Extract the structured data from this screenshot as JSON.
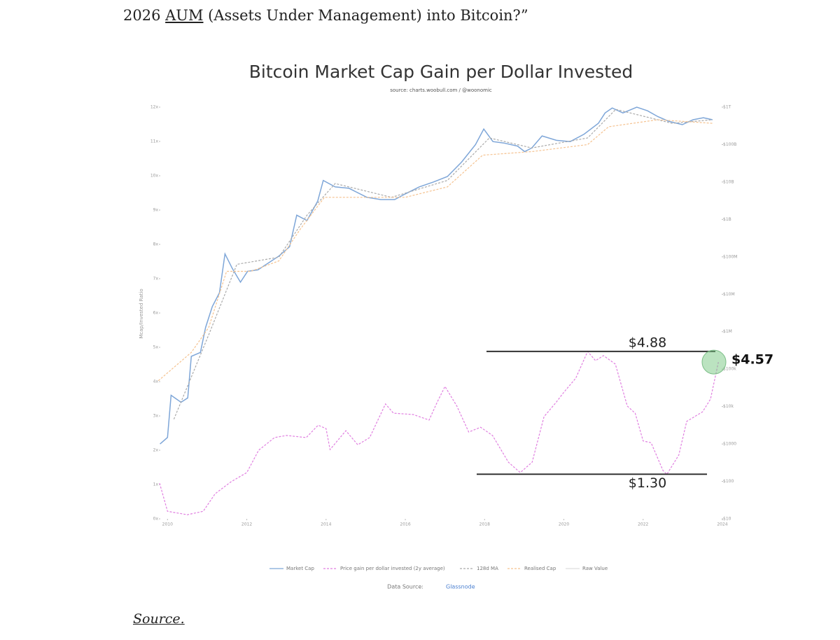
{
  "document": {
    "intro_before": "2026 ",
    "intro_link": "AUM",
    "intro_after": " (Assets Under Management) into Bitcoin?”",
    "source_link": "Source."
  },
  "chart_data": {
    "type": "line",
    "title": "Bitcoin Market Cap Gain per Dollar Invested",
    "subtitle": "source: charts.woobull.com / @woonomic",
    "y_label": "Mcap/Invested Ratio",
    "data_source_label": "Data Source:",
    "data_source_link": "Glassnode",
    "xlim": [
      2009.8,
      2024
    ],
    "xticks": [
      2010,
      2012,
      2014,
      2016,
      2018,
      2020,
      2022,
      2024
    ],
    "ylim": [
      0,
      12
    ],
    "yticks": [
      {
        "value": 0,
        "label": "0x"
      },
      {
        "value": 1,
        "label": "1x"
      },
      {
        "value": 2,
        "label": "2x"
      },
      {
        "value": 3,
        "label": "3x"
      },
      {
        "value": 4,
        "label": "4x"
      },
      {
        "value": 5,
        "label": "5x"
      },
      {
        "value": 6,
        "label": "6x"
      },
      {
        "value": 7,
        "label": "7x"
      },
      {
        "value": 8,
        "label": "8x"
      },
      {
        "value": 9,
        "label": "9x"
      },
      {
        "value": 10,
        "label": "10x"
      },
      {
        "value": 11,
        "label": "11x"
      },
      {
        "value": 12,
        "label": "12x"
      }
    ],
    "y2lim": [
      10,
      1000000000000
    ],
    "y2log": true,
    "y2ticks": [
      {
        "value": 10,
        "label": "$10"
      },
      {
        "value": 100,
        "label": "$100"
      },
      {
        "value": 1000,
        "label": "$1000"
      },
      {
        "value": 10000,
        "label": "$10k"
      },
      {
        "value": 100000,
        "label": "$100k"
      },
      {
        "value": 1000000,
        "label": "$1M"
      },
      {
        "value": 10000000,
        "label": "$10M"
      },
      {
        "value": 100000000,
        "label": "$100M"
      },
      {
        "value": 1000000000,
        "label": "$1B"
      },
      {
        "value": 10000000000,
        "label": "$10B"
      },
      {
        "value": 100000000000,
        "label": "$100B"
      },
      {
        "value": 1000000000000,
        "label": "$1T"
      }
    ],
    "series": [
      {
        "name": "Market Cap",
        "color": "#7ea6d8",
        "axis": "y2",
        "dashed": false,
        "x": [
          2009.81,
          2010.0,
          2010.09,
          2010.34,
          2010.51,
          2010.6,
          2010.83,
          2010.96,
          2011.13,
          2011.31,
          2011.45,
          2011.63,
          2011.84,
          2012.02,
          2012.28,
          2012.55,
          2012.81,
          2013.08,
          2013.26,
          2013.52,
          2013.79,
          2013.93,
          2014.23,
          2014.58,
          2015.03,
          2015.38,
          2015.73,
          2016.0,
          2016.35,
          2016.71,
          2017.06,
          2017.42,
          2017.77,
          2017.98,
          2018.21,
          2018.48,
          2018.83,
          2019.01,
          2019.19,
          2019.45,
          2019.81,
          2020.16,
          2020.51,
          2020.87,
          2021.04,
          2021.22,
          2021.49,
          2021.84,
          2022.11,
          2022.37,
          2022.64,
          2022.99,
          2023.26,
          2023.52,
          2023.75
        ],
        "values": [
          1000,
          1500,
          20000,
          13000,
          17000,
          220000,
          280000,
          1300000,
          4700000,
          11000000,
          120000000,
          50000000,
          21000000,
          41000000,
          45000000,
          69000000,
          105000000,
          186000000,
          1300000000,
          930000000,
          3100000000,
          11000000000,
          7400000000,
          6800000000,
          3900000000,
          3400000000,
          3400000000,
          4800000000,
          7400000000,
          10000000000,
          14000000000,
          34000000000,
          100000000000,
          260000000000,
          120000000000,
          110000000000,
          91000000000,
          65000000000,
          81000000000,
          170000000000,
          130000000000,
          120000000000,
          190000000000,
          370000000000,
          700000000000,
          950000000000,
          700000000000,
          1000000000000,
          800000000000,
          560000000000,
          420000000000,
          340000000000,
          460000000000,
          520000000000,
          460000000000
        ]
      },
      {
        "name": "Price gain per dollar invested (2y average)",
        "color": "#e07fe0",
        "dashed": true,
        "x": [
          2009.8,
          2010.0,
          2010.5,
          2010.9,
          2011.2,
          2011.6,
          2012.0,
          2012.3,
          2012.7,
          2013.0,
          2013.5,
          2013.8,
          2014.0,
          2014.1,
          2014.5,
          2014.8,
          2015.1,
          2015.5,
          2015.7,
          2016.2,
          2016.6,
          2016.8,
          2017.0,
          2017.3,
          2017.6,
          2017.9,
          2018.2,
          2018.6,
          2018.9,
          2019.2,
          2019.5,
          2019.8,
          2020.0,
          2020.3,
          2020.6,
          2020.8,
          2021.0,
          2021.3,
          2021.6,
          2021.8,
          2022.0,
          2022.2,
          2022.5,
          2022.6,
          2022.9,
          2023.1,
          2023.5,
          2023.7,
          2023.9
        ],
        "values": [
          1.04,
          0.22,
          0.12,
          0.22,
          0.73,
          1.08,
          1.35,
          2.0,
          2.37,
          2.43,
          2.37,
          2.73,
          2.63,
          2.02,
          2.57,
          2.16,
          2.37,
          3.35,
          3.08,
          3.04,
          2.88,
          3.39,
          3.86,
          3.29,
          2.53,
          2.67,
          2.43,
          1.65,
          1.35,
          1.65,
          2.98,
          3.39,
          3.69,
          4.1,
          4.88,
          4.61,
          4.76,
          4.51,
          3.29,
          3.08,
          2.27,
          2.22,
          1.41,
          1.3,
          1.86,
          2.84,
          3.12,
          3.49,
          4.57
        ]
      },
      {
        "name": "128d MA",
        "color": "#aaaaaa",
        "axis": "y2",
        "dashed": true,
        "x": [
          2010.16,
          2011.04,
          2011.75,
          2012.81,
          2013.52,
          2014.23,
          2015.65,
          2017.06,
          2018.12,
          2019.19,
          2020.6,
          2021.31,
          2022.73,
          2023.75
        ],
        "values": [
          4600,
          830000,
          63000000,
          98000000,
          1300000000,
          9100000000,
          3900000000,
          11000000000,
          150000000000,
          81000000000,
          150000000000,
          870000000000,
          370000000000,
          460000000000
        ]
      },
      {
        "name": "Realised Cap",
        "color": "#f5c28f",
        "axis": "y2",
        "dashed": true,
        "x": [
          2009.77,
          2010.6,
          2011.04,
          2011.49,
          2012.1,
          2012.81,
          2013.35,
          2013.96,
          2014.94,
          2016.0,
          2017.06,
          2017.95,
          2019.19,
          2020.6,
          2021.13,
          2022.37,
          2023.75
        ],
        "values": [
          49000,
          280000,
          1300000,
          41000000,
          41000000,
          78000000,
          550000000,
          3900000000,
          3900000000,
          3900000000,
          7400000000,
          52000000000,
          65000000000,
          100000000000,
          300000000000,
          460000000000,
          370000000000
        ]
      },
      {
        "name": "Raw Value",
        "color": "#dddddd",
        "dashed": false,
        "x": [],
        "values": []
      }
    ],
    "annotations": [
      {
        "value": 4.88,
        "label": "$4.88"
      },
      {
        "value": 1.3,
        "label": "$1.30"
      },
      {
        "value": 4.57,
        "label": "$4.57"
      }
    ]
  }
}
